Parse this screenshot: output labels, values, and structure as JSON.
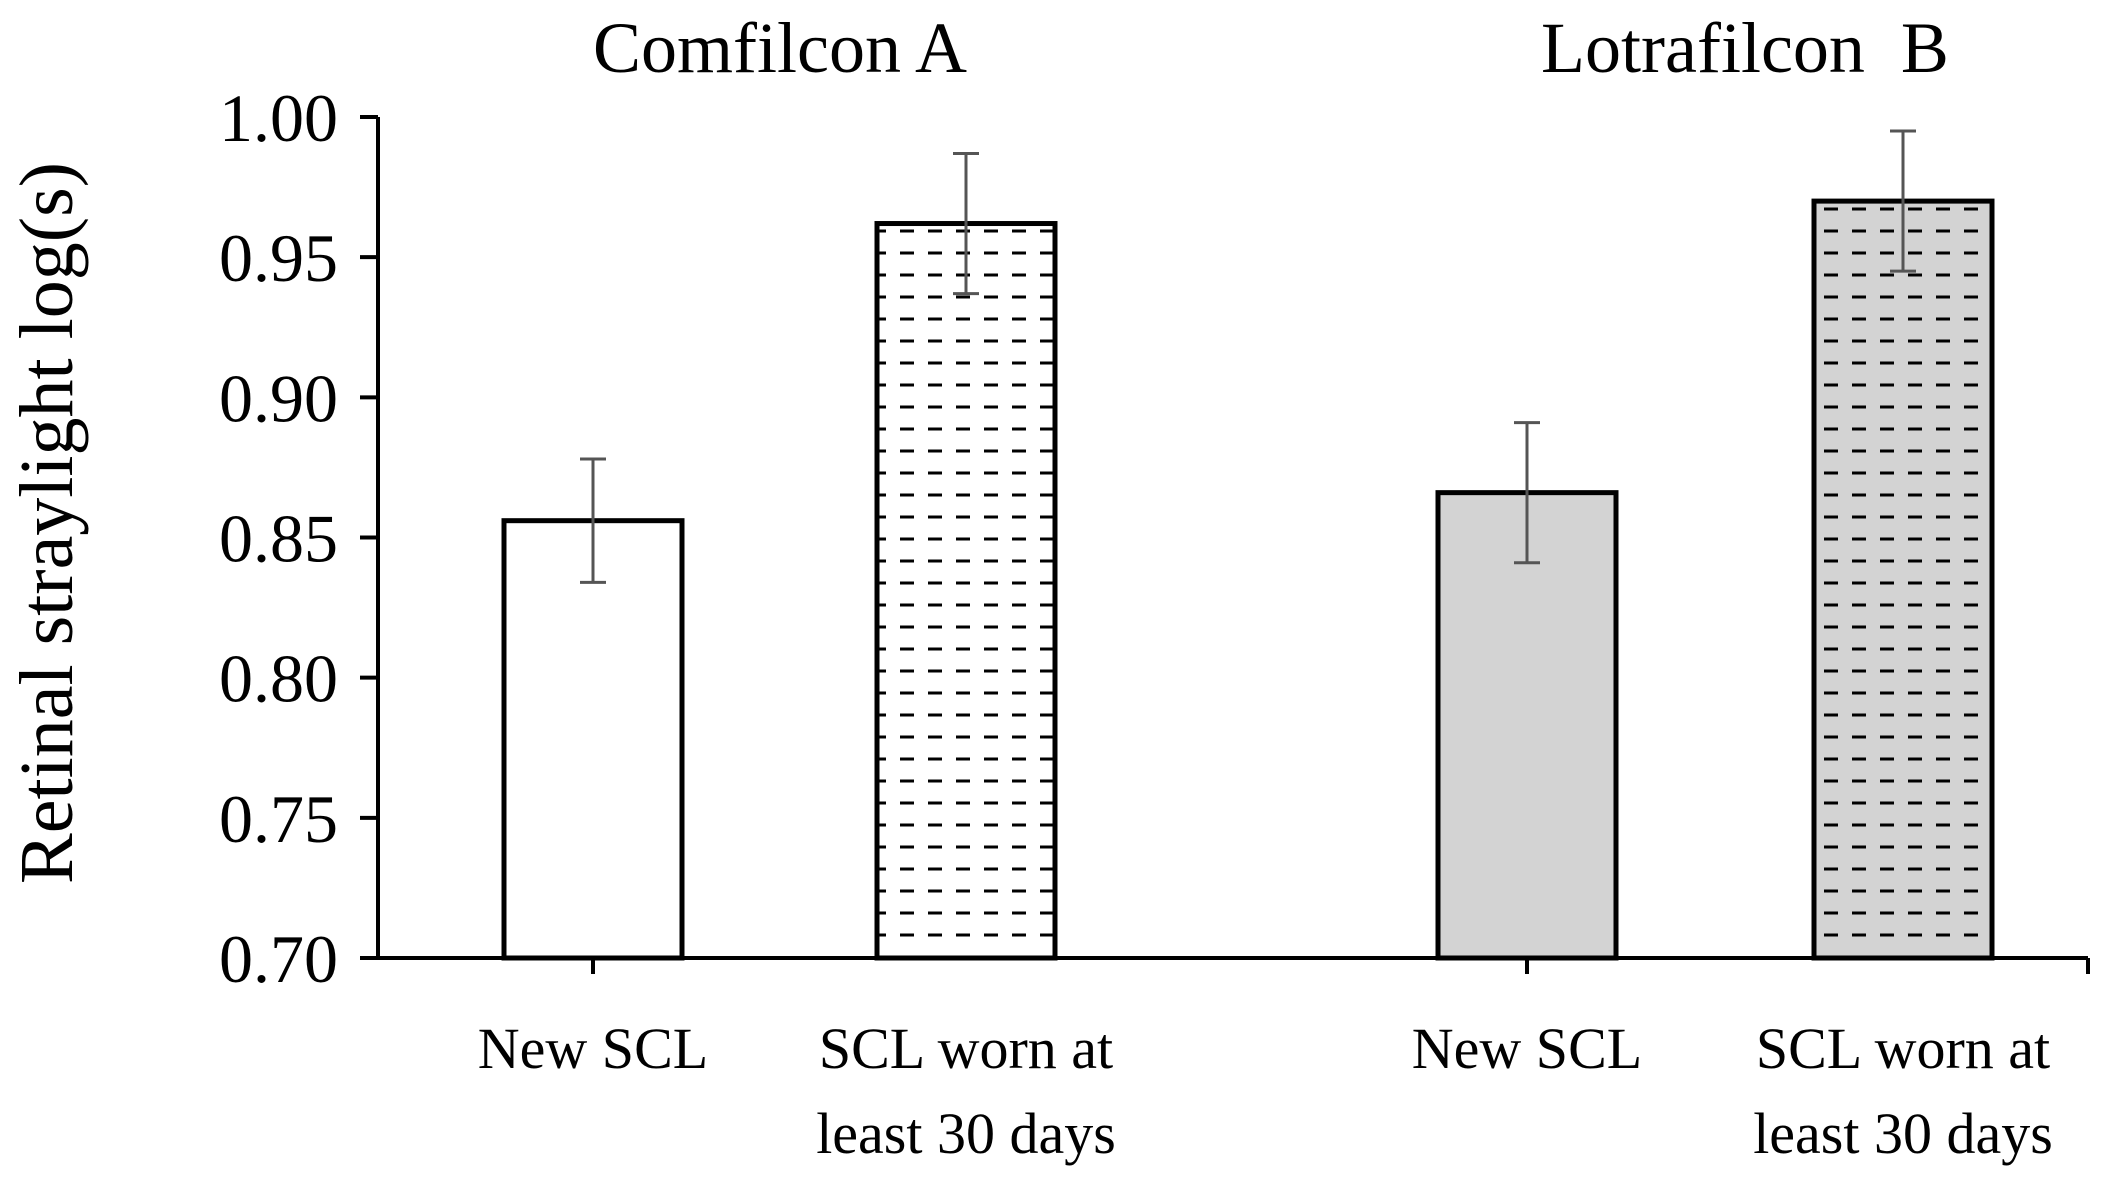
{
  "chart_data": {
    "type": "bar",
    "title": "",
    "xlabel": "",
    "ylabel": "Retinal straylight log(s)",
    "ylim": [
      0.7,
      1.0
    ],
    "yticks": [
      "0.70",
      "0.75",
      "0.80",
      "0.85",
      "0.90",
      "0.95",
      "1.00"
    ],
    "groups": [
      {
        "name": "Comfilcon A",
        "bars": [
          {
            "label_lines": [
              "New SCL"
            ],
            "value": 0.856,
            "error": 0.022,
            "fill": "#ffffff",
            "pattern": "none"
          },
          {
            "label_lines": [
              "SCL worn at",
              "least 30 days"
            ],
            "value": 0.962,
            "error": 0.025,
            "fill": "#ffffff",
            "pattern": "dashes"
          }
        ]
      },
      {
        "name": "Lotrafilcon  B",
        "bars": [
          {
            "label_lines": [
              "New SCL"
            ],
            "value": 0.866,
            "error": 0.025,
            "fill": "#d3d3d3",
            "pattern": "none"
          },
          {
            "label_lines": [
              "SCL worn at",
              "least 30 days"
            ],
            "value": 0.97,
            "error": 0.025,
            "fill": "#d3d3d3",
            "pattern": "dashes"
          }
        ]
      }
    ],
    "grid": false,
    "legend": "none",
    "colors": {
      "axis": "#000000",
      "error_bar": "#555555",
      "gray_fill": "#d3d3d3"
    }
  }
}
